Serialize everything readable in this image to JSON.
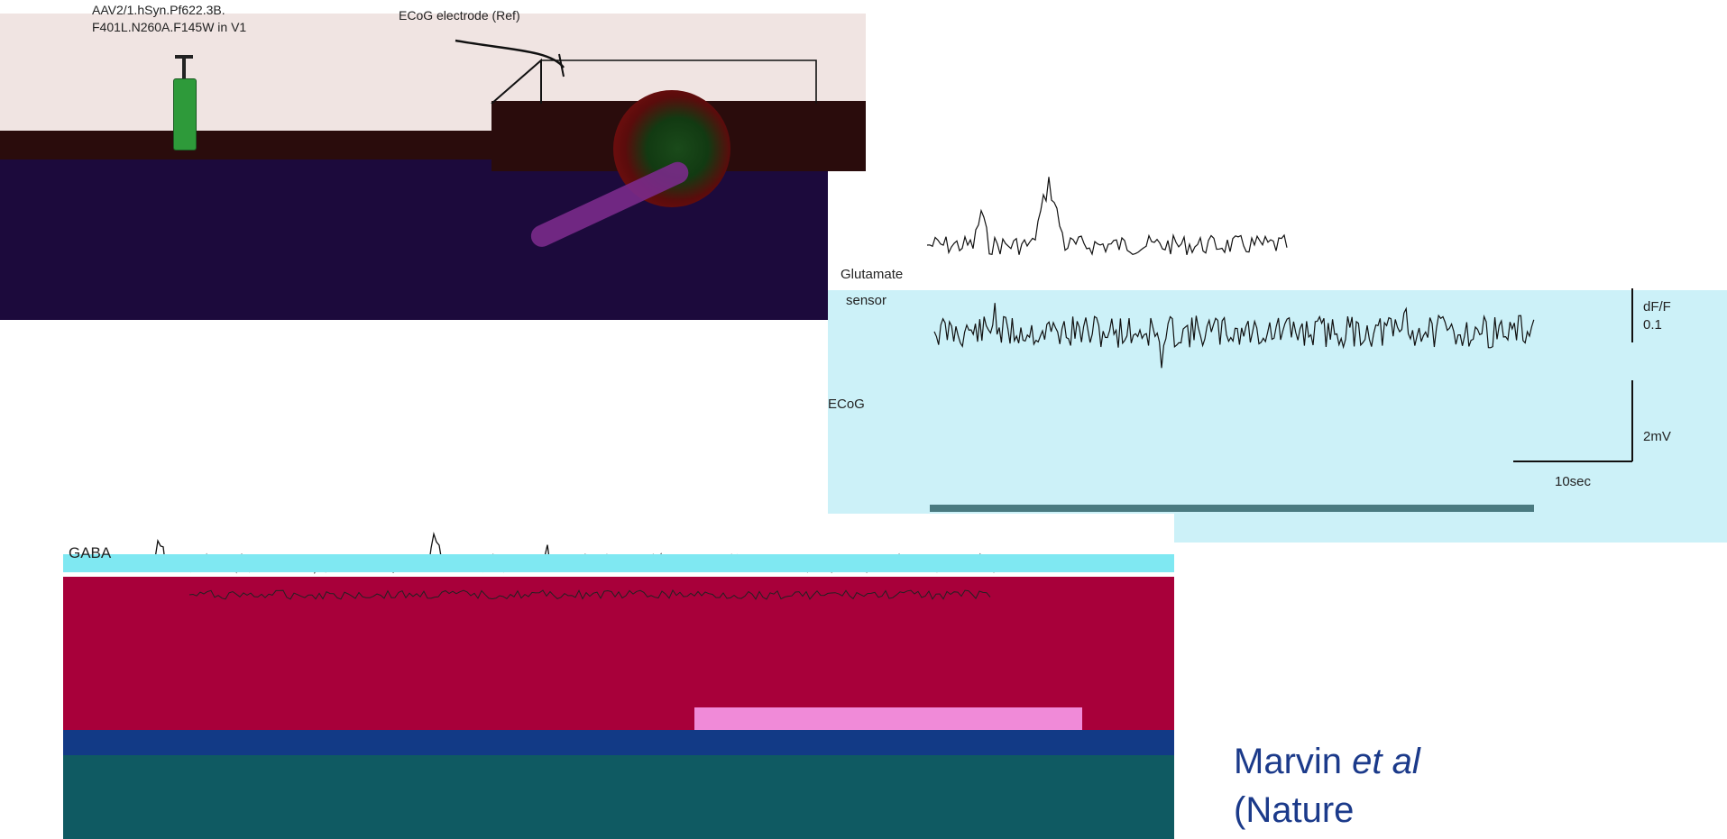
{
  "schematic": {
    "virus_label_line1": "AAV2/1.hSyn.Pf622.3B.",
    "virus_label_line2": "F401L.N260A.F145W in V1",
    "ecog_electrode_label": "ECoG electrode (Ref)"
  },
  "glutamate_panel": {
    "glutamate_label": "Glutamate",
    "sensor_label": "sensor",
    "dff_unit": "dF/F",
    "dff_value": "0.1",
    "ecog_label": "ECoG",
    "voltage_scale": "2mV",
    "time_scale": "10sec"
  },
  "gaba_panel": {
    "gaba_label": "GABA"
  },
  "citation": {
    "author": "Marvin ",
    "etal": "et al",
    "journal": "(Nature"
  },
  "colors": {
    "citation": "#1b3a8a",
    "cyan_panel": "#ccf1f8",
    "crimson_band": "#a8003a",
    "teal_band": "#0f5a62",
    "navy_band": "#123a86"
  }
}
